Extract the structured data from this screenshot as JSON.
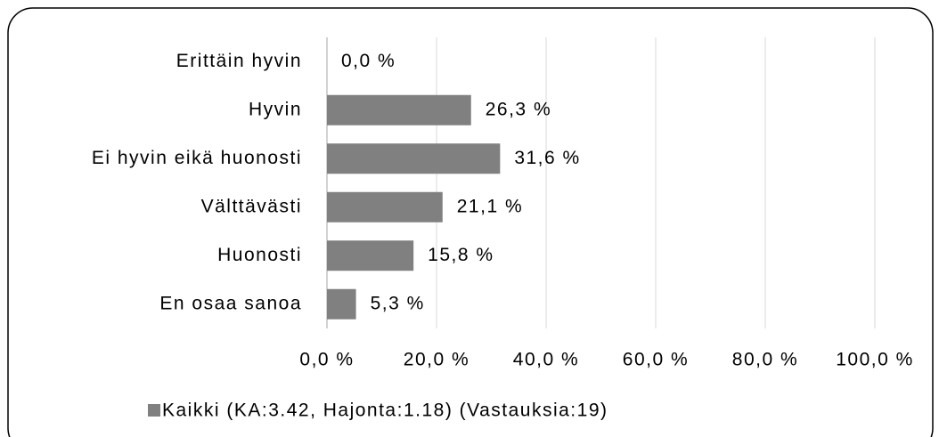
{
  "chart_data": {
    "type": "barh",
    "categories": [
      "Erittäin hyvin",
      "Hyvin",
      "Ei hyvin eikä huonosti",
      "Välttävästi",
      "Huonosti",
      "En osaa sanoa"
    ],
    "series": [
      {
        "name": "Kaikki (KA:3.42, Hajonta:1.18) (Vastauksia:19)",
        "color": "#808080",
        "values": [
          0,
          26.3,
          31.6,
          21.1,
          15.8,
          5.3
        ],
        "value_labels": [
          "0,0 %",
          "26,3 %",
          "31,6 %",
          "21,1 %",
          "15,8 %",
          "5,3 %"
        ]
      }
    ],
    "xlim": [
      0,
      100
    ],
    "xticks": [
      {
        "value": 0,
        "label": "0,0 %"
      },
      {
        "value": 20,
        "label": "20,0 %"
      },
      {
        "value": 40,
        "label": "40,0 %"
      },
      {
        "value": 60,
        "label": "60,0 %"
      },
      {
        "value": 80,
        "label": "80,0 %"
      },
      {
        "value": 100,
        "label": "100,0 %"
      }
    ],
    "grid": true,
    "legend": "bottom"
  }
}
